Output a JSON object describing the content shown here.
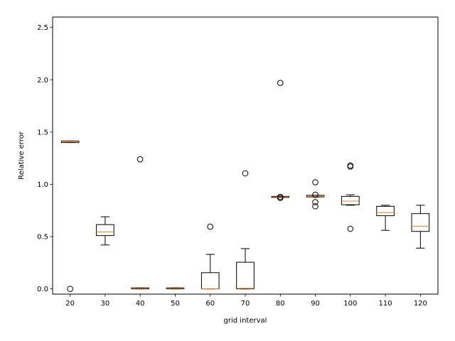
{
  "chart_data": {
    "type": "boxplot",
    "title": "",
    "xlabel": "grid interval",
    "ylabel": "Relative error",
    "ylim": [
      -0.05,
      2.6
    ],
    "yticks": [
      "0.0",
      "0.5",
      "1.0",
      "1.5",
      "2.0",
      "2.5"
    ],
    "grid": false,
    "colors": {
      "box": "#000000",
      "median": "#ff7f0e",
      "flier": "#000000"
    },
    "categories": [
      "20",
      "30",
      "40",
      "50",
      "60",
      "70",
      "80",
      "90",
      "100",
      "110",
      "120"
    ],
    "boxes": [
      {
        "category": "20",
        "whisker_low": 1.4,
        "q1": 1.4,
        "median": 1.41,
        "q3": 1.415,
        "whisker_high": 1.415,
        "fliers": [
          0.0
        ]
      },
      {
        "category": "30",
        "whisker_low": 0.42,
        "q1": 0.51,
        "median": 0.545,
        "q3": 0.615,
        "whisker_high": 0.69,
        "fliers": []
      },
      {
        "category": "40",
        "whisker_low": 0.0,
        "q1": 0.0,
        "median": 0.005,
        "q3": 0.01,
        "whisker_high": 0.01,
        "fliers": [
          1.24
        ]
      },
      {
        "category": "50",
        "whisker_low": 0.0,
        "q1": 0.0,
        "median": 0.005,
        "q3": 0.01,
        "whisker_high": 0.01,
        "fliers": []
      },
      {
        "category": "60",
        "whisker_low": 0.0,
        "q1": 0.0,
        "median": 0.0,
        "q3": 0.155,
        "whisker_high": 0.33,
        "fliers": [
          0.595
        ]
      },
      {
        "category": "70",
        "whisker_low": 0.0,
        "q1": 0.0,
        "median": 0.005,
        "q3": 0.255,
        "whisker_high": 0.385,
        "fliers": [
          1.105
        ]
      },
      {
        "category": "80",
        "whisker_low": 0.875,
        "q1": 0.875,
        "median": 0.88,
        "q3": 0.885,
        "whisker_high": 0.885,
        "fliers": [
          1.97,
          0.87,
          0.88
        ]
      },
      {
        "category": "90",
        "whisker_low": 0.88,
        "q1": 0.88,
        "median": 0.885,
        "q3": 0.895,
        "whisker_high": 0.895,
        "fliers": [
          1.02,
          0.9,
          0.83,
          0.79
        ]
      },
      {
        "category": "100",
        "whisker_low": 0.8,
        "q1": 0.805,
        "median": 0.84,
        "q3": 0.885,
        "whisker_high": 0.9,
        "fliers": [
          1.18,
          1.17,
          0.575
        ]
      },
      {
        "category": "110",
        "whisker_low": 0.56,
        "q1": 0.7,
        "median": 0.73,
        "q3": 0.79,
        "whisker_high": 0.8,
        "fliers": []
      },
      {
        "category": "120",
        "whisker_low": 0.39,
        "q1": 0.55,
        "median": 0.6,
        "q3": 0.72,
        "whisker_high": 0.8,
        "fliers": []
      }
    ]
  }
}
